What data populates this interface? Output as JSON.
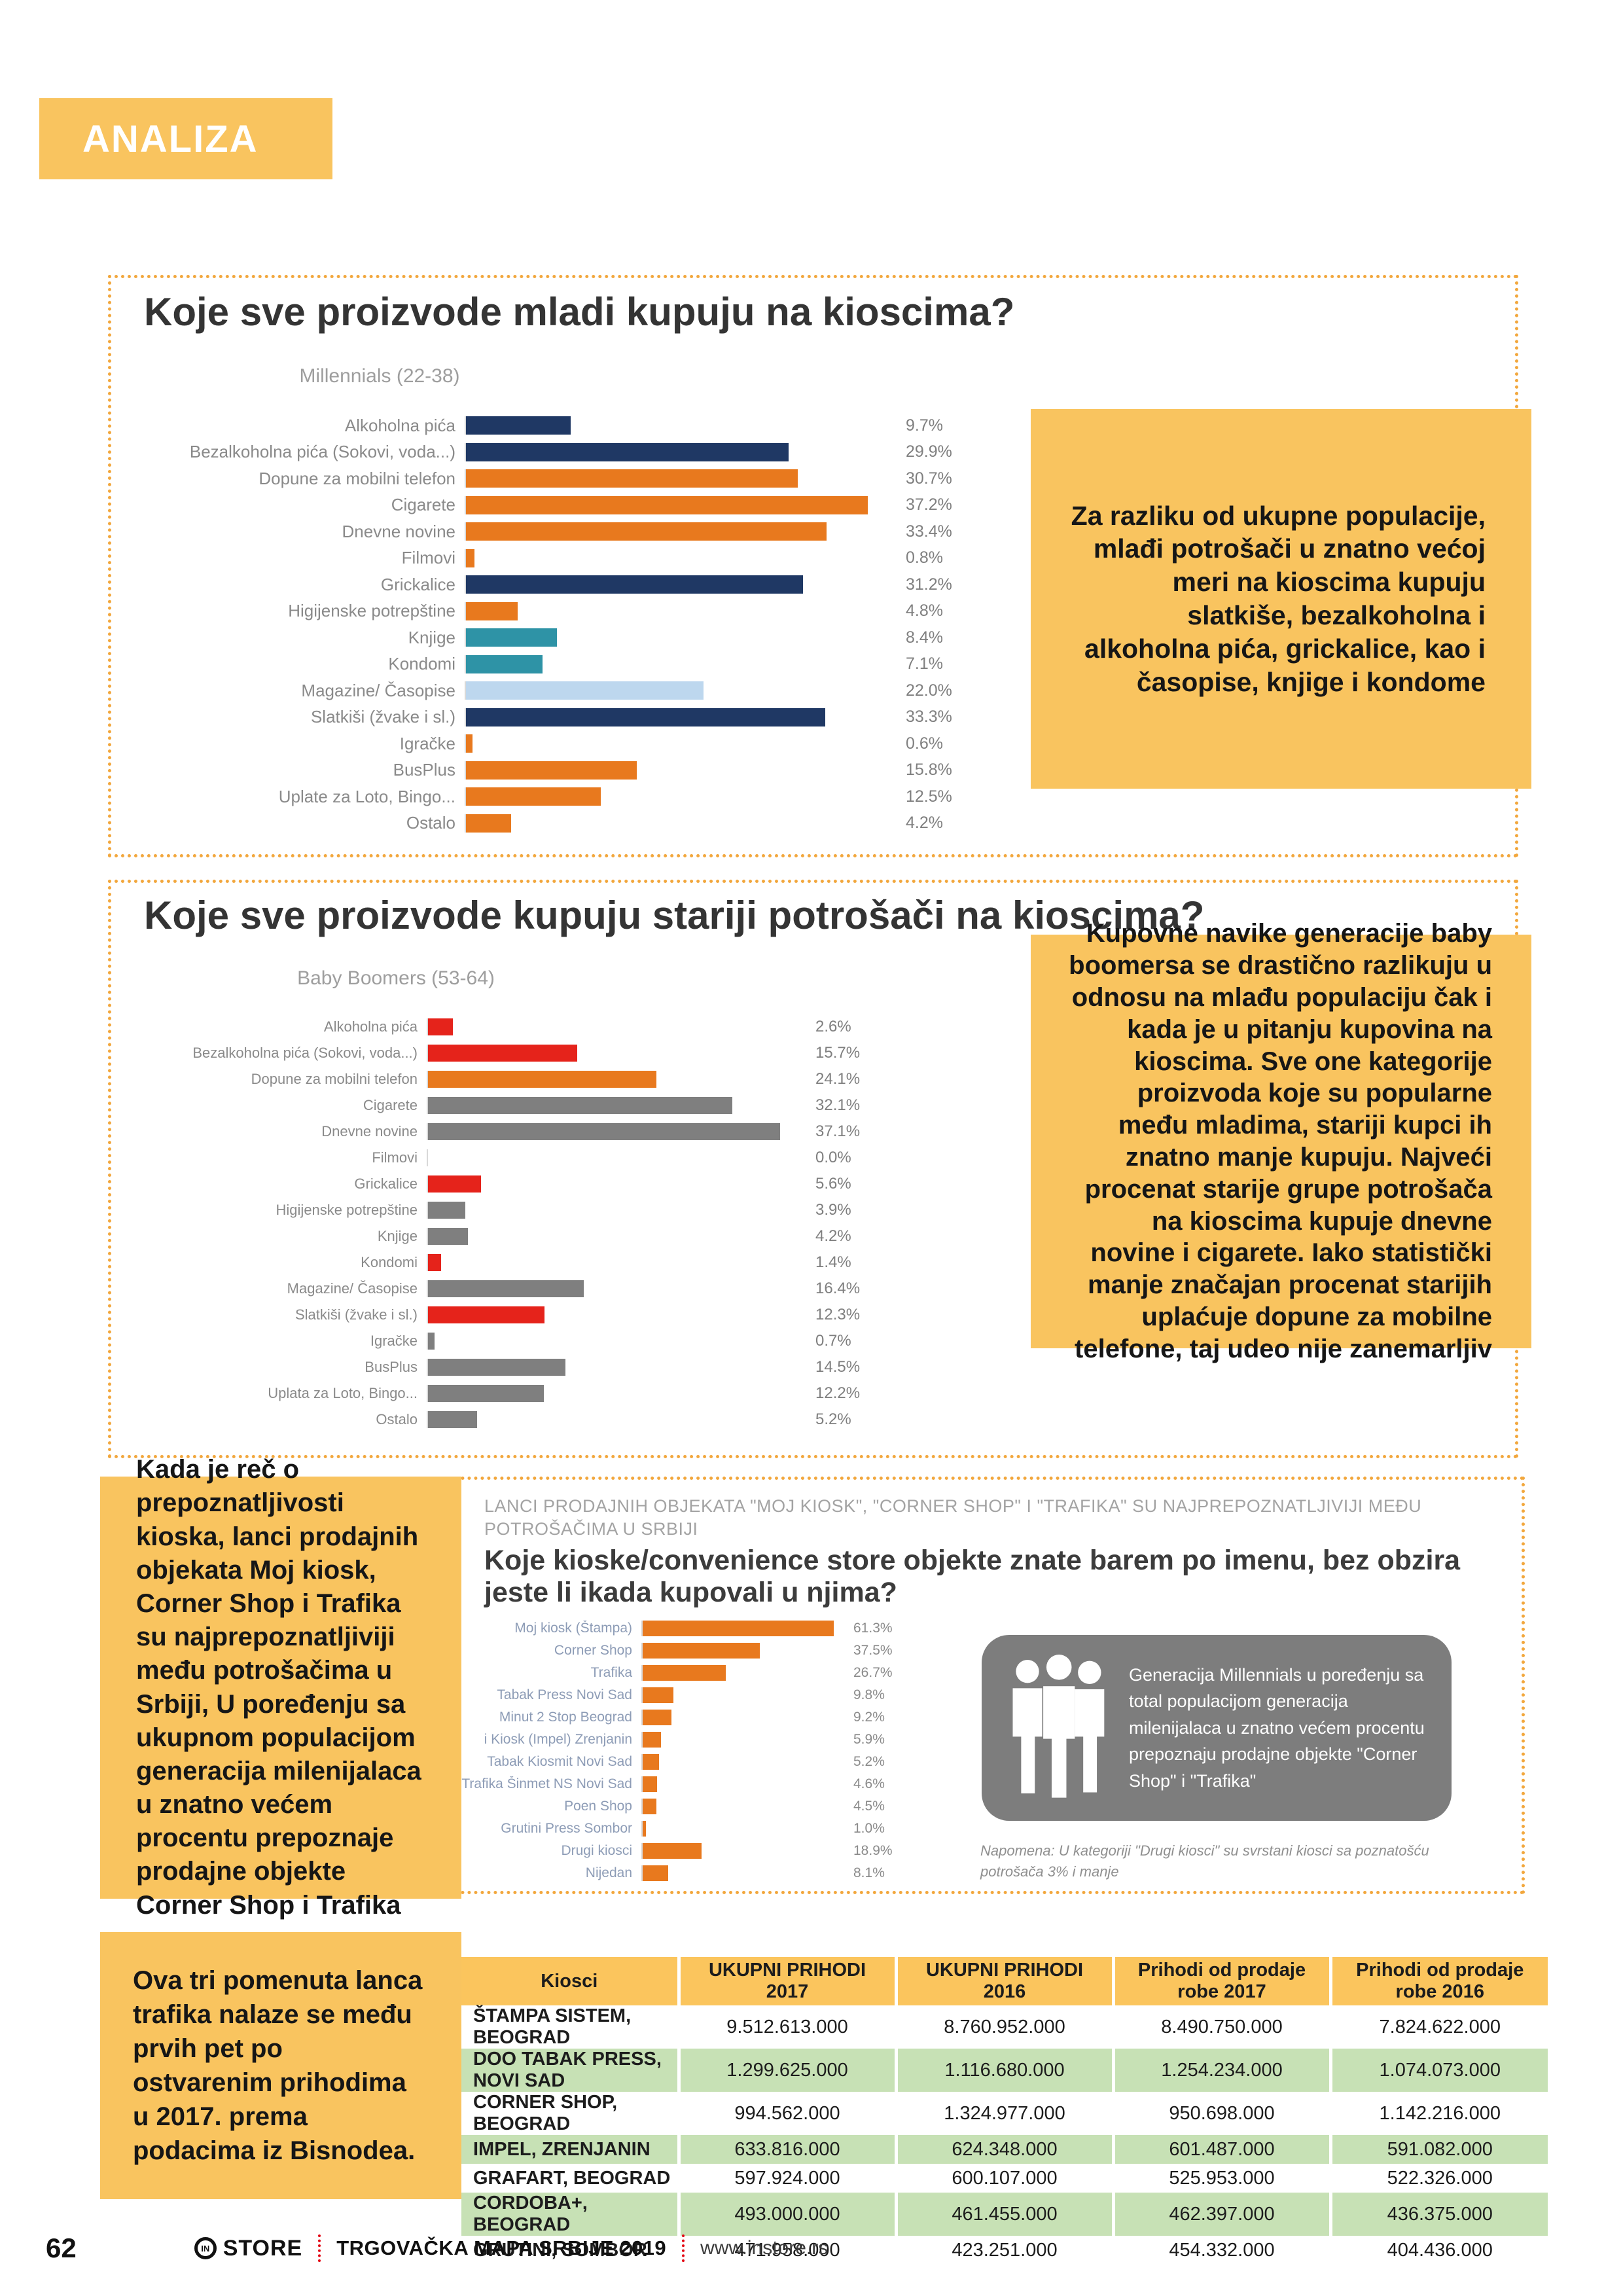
{
  "palette": {
    "navy": "#1F3864",
    "orange": "#E8791E",
    "teal": "#2E93A6",
    "lightblue": "#BDD7EE",
    "red": "#E5231B",
    "gray": "#7F7F7F",
    "accent_yellow": "#F9C45F",
    "table_green": "#C7E1B5",
    "table_header": "#FBC55D"
  },
  "header": {
    "title": "ANALIZA"
  },
  "chart_data": [
    {
      "type": "bar",
      "orientation": "horizontal",
      "title": "Koje sve proizvode mladi kupuju na kioscima?",
      "subtitle": "Millennials (22-38)",
      "value_suffix": "%",
      "xlim": [
        0,
        40
      ],
      "grid": false,
      "legend": false,
      "categories": [
        "Alkoholna pića",
        "Bezalkoholna pića (Sokovi, voda...)",
        "Dopune za mobilni telefon",
        "Cigarete",
        "Dnevne novine",
        "Filmovi",
        "Grickalice",
        "Higijenske potrepštine",
        "Knjige",
        "Kondomi",
        "Magazine/ Časopise",
        "Slatkiši (žvake i sl.)",
        "Igračke",
        "BusPlus",
        "Uplate za Loto, Bingo...",
        "Ostalo"
      ],
      "values": [
        9.7,
        29.9,
        30.7,
        37.2,
        33.4,
        0.8,
        31.2,
        4.8,
        8.4,
        7.1,
        22.0,
        33.3,
        0.6,
        15.8,
        12.5,
        4.2
      ],
      "colors": [
        "navy",
        "navy",
        "orange",
        "orange",
        "orange",
        "orange",
        "navy",
        "orange",
        "teal",
        "teal",
        "lightblue",
        "navy",
        "orange",
        "orange",
        "orange",
        "orange"
      ]
    },
    {
      "type": "bar",
      "orientation": "horizontal",
      "title": "Koje sve proizvode kupuju stariji potrošači na kioscima?",
      "subtitle": "Baby Boomers (53-64)",
      "value_suffix": "%",
      "xlim": [
        0,
        40
      ],
      "grid": false,
      "legend": false,
      "categories": [
        "Alkoholna pića",
        "Bezalkoholna pića (Sokovi, voda...)",
        "Dopune za mobilni telefon",
        "Cigarete",
        "Dnevne novine",
        "Filmovi",
        "Grickalice",
        "Higijenske potrepštine",
        "Knjige",
        "Kondomi",
        "Magazine/ Časopise",
        "Slatkiši (žvake i sl.)",
        "Igračke",
        "BusPlus",
        "Uplata za Loto, Bingo...",
        "Ostalo"
      ],
      "values": [
        2.6,
        15.7,
        24.1,
        32.1,
        37.1,
        0.0,
        5.6,
        3.9,
        4.2,
        1.4,
        16.4,
        12.3,
        0.7,
        14.5,
        12.2,
        5.2
      ],
      "colors": [
        "red",
        "red",
        "orange",
        "gray",
        "gray",
        "gray",
        "red",
        "gray",
        "gray",
        "red",
        "gray",
        "red",
        "gray",
        "gray",
        "gray",
        "gray"
      ]
    },
    {
      "type": "bar",
      "orientation": "horizontal",
      "eyebrow": "LANCI PRODAJNIH OBJEKATA \"MOJ KIOSK\", \"CORNER SHOP\" I \"TRAFIKA\" SU NAJPREPOZNATLJIVIJI MEĐU POTROŠAČIMA U SRBIJI",
      "title": "Koje kioske/convenience store objekte znate barem po imenu, bez obzira jeste li ikada kupovali u njima?",
      "value_suffix": "%",
      "xlim": [
        0,
        65
      ],
      "grid": false,
      "legend": false,
      "categories": [
        "Moj kiosk (Štampa)",
        "Corner Shop",
        "Trafika",
        "Tabak Press Novi Sad",
        "Minut 2 Stop Beograd",
        "i Kiosk (Impel) Zrenjanin",
        "Tabak Kiosmit Novi Sad",
        "Trafika Šinmet NS Novi Sad",
        "Poen Shop",
        "Grutini Press Sombor",
        "Drugi kiosci",
        "Nijedan"
      ],
      "values": [
        61.3,
        37.5,
        26.7,
        9.8,
        9.2,
        5.9,
        5.2,
        4.6,
        4.5,
        1.0,
        18.9,
        8.1
      ],
      "colors": [
        "orange",
        "orange",
        "orange",
        "orange",
        "orange",
        "orange",
        "orange",
        "orange",
        "orange",
        "orange",
        "orange",
        "orange"
      ]
    }
  ],
  "callouts": {
    "millennials": "Za razliku od ukupne populacije, mlađi potrošači u znatno većoj meri na kioscima kupuju slatkiše, bezalkoholna i alkoholna pića, grickalice, kao i časopise, knjige i kondome",
    "boomers": "Kupovne navike generacije baby boomersa se drastično razlikuju u odnosu na mlađu populaciju čak i kada je u pitanju kupovina na kioscima. Sve one kategorije proizvoda koje su popularne među mladima, stariji kupci ih znatno manje kupuju. Najveći procenat starije grupe potrošača na kioscima kupuje dnevne novine i cigarete. Iako statistički manje značajan procenat starijih uplaćuje dopune za mobilne telefone, taj udeo nije zanemarljiv",
    "awareness": "Kada je reč o prepoznatljivosti kioska, lanci prodajnih objekata Moj kiosk, Corner Shop i Trafika su najprepoznatljiviji među potrošačima u Srbiji, U poređenju sa ukupnom populacijom generacija milenijalaca u znatno većem procentu prepoznaje prodajne objekte Corner Shop i Trafika",
    "revenue": "Ova tri pomenuta lanca trafika nalaze se među prvih pet po ostvarenim prihodima u 2017. prema podacima iz Bisnodea."
  },
  "insight_box": {
    "icon": "people-silhouette-icon",
    "text": "Generacija Millennials u poređenju sa total populacijom generacija milenijalaca u znatno većem procentu prepoznaju prodajne objekte \"Corner Shop\" i \"Trafika\""
  },
  "note": "Napomena: U kategoriji \"Drugi kiosci\" su svrstani kiosci sa poznatošću potrošača 3% i manje",
  "table": {
    "headers": [
      "Kiosci",
      "UKUPNI PRIHODI 2017",
      "UKUPNI PRIHODI 2016",
      "Prihodi od prodaje robe 2017",
      "Prihodi od prodaje robe 2016"
    ],
    "rows": [
      [
        "ŠTAMPA SISTEM, BEOGRAD",
        "9.512.613.000",
        "8.760.952.000",
        "8.490.750.000",
        "7.824.622.000"
      ],
      [
        "DOO TABAK PRESS, NOVI SAD",
        "1.299.625.000",
        "1.116.680.000",
        "1.254.234.000",
        "1.074.073.000"
      ],
      [
        "CORNER SHOP, BEOGRAD",
        "994.562.000",
        "1.324.977.000",
        "950.698.000",
        "1.142.216.000"
      ],
      [
        "IMPEL, ZRENJANIN",
        "633.816.000",
        "624.348.000",
        "601.487.000",
        "591.082.000"
      ],
      [
        "GRAFART, BEOGRAD",
        "597.924.000",
        "600.107.000",
        "525.953.000",
        "522.326.000"
      ],
      [
        "CORDOBA+, BEOGRAD",
        "493.000.000",
        "461.455.000",
        "462.397.000",
        "436.375.000"
      ],
      [
        "GRUTINI, SOMBOR",
        "471.958.000",
        "423.251.000",
        "454.332.000",
        "404.436.000"
      ]
    ]
  },
  "footer": {
    "page_number": "62",
    "logo_prefix": "IN",
    "logo": "STORE",
    "edition": "TRGOVAČKA MAPA SRBIJE 2019",
    "website": "www.instore.rs"
  }
}
